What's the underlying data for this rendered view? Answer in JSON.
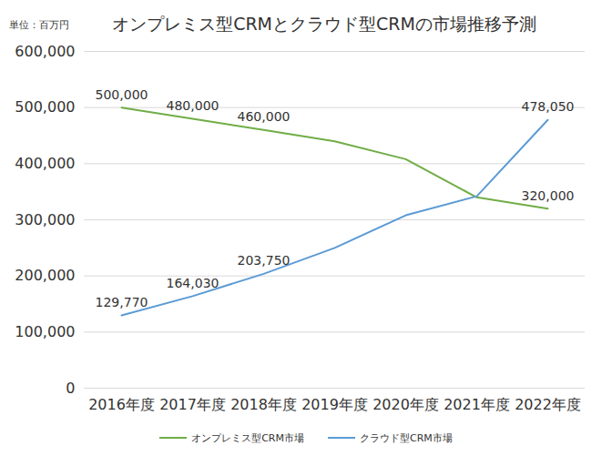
{
  "chart_data": {
    "type": "line",
    "title": "オンプレミス型CRMとクラウド型CRMの市場推移予測",
    "y_label": "単位：百万円",
    "categories": [
      "2016年度",
      "2017年度",
      "2018年度",
      "2019年度",
      "2020年度",
      "2021年度",
      "2022年度"
    ],
    "series": [
      {
        "name": "オンプレミス型CRM市場",
        "color": "#70ad47",
        "values": [
          500000,
          480000,
          460000,
          440000,
          408000,
          340000,
          320000
        ],
        "value_labels": [
          "500,000",
          "480,000",
          "460,000",
          null,
          null,
          null,
          "320,000"
        ]
      },
      {
        "name": "クラウド型CRM市場",
        "color": "#5b9bd5",
        "values": [
          129770,
          164030,
          203750,
          250000,
          308000,
          342000,
          478050
        ],
        "value_labels": [
          "129,770",
          "164,030",
          "203,750",
          null,
          null,
          null,
          "478,050"
        ]
      }
    ],
    "ylim": [
      0,
      600000
    ],
    "yticks": [
      0,
      {
        "value": 100000,
        "label": "100,000"
      },
      {
        "value": 200000,
        "label": "200,000"
      },
      {
        "value": 300000,
        "label": "300,000"
      },
      {
        "value": 400000,
        "label": "400,000"
      },
      {
        "value": 500000,
        "label": "500,000"
      },
      {
        "value": 600000,
        "label": "600,000"
      }
    ],
    "grid": true,
    "data_labels": true,
    "legend": "bottom"
  }
}
